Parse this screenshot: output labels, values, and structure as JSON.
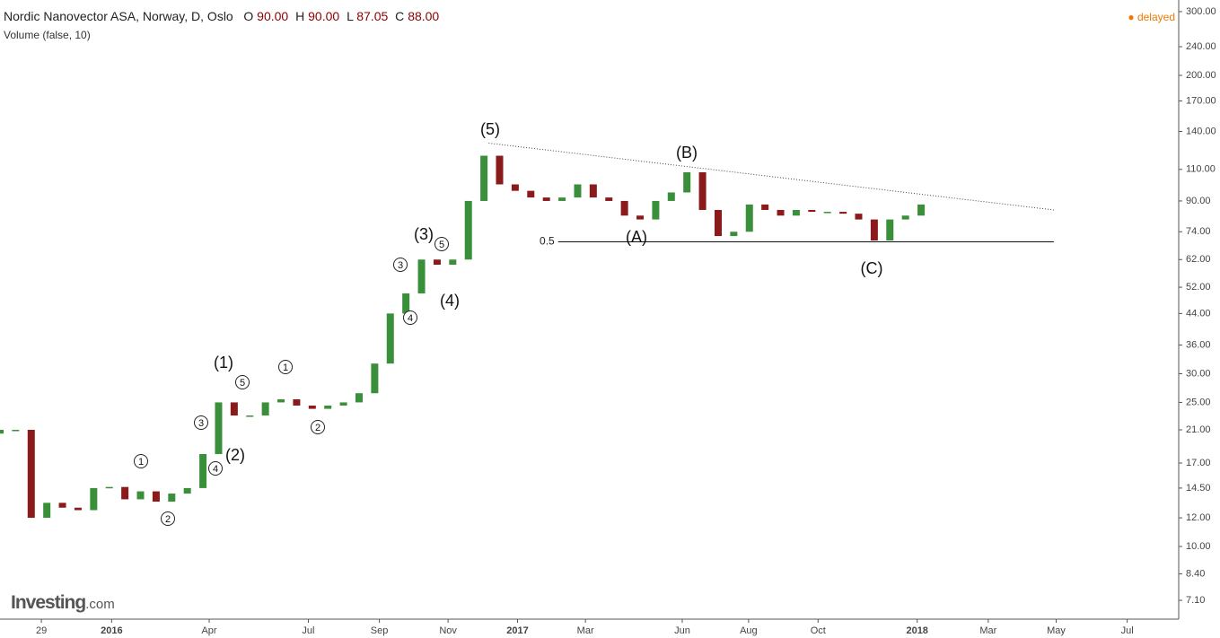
{
  "header": {
    "symbol": "Nordic Nanovector ASA, Norway, D, Oslo",
    "open_label": "O",
    "open": "90.00",
    "high_label": "H",
    "high": "90.00",
    "low_label": "L",
    "low": "87.05",
    "close_label": "C",
    "close": "88.00",
    "indicator": "Volume (false, 10)",
    "status": "delayed",
    "logo": "Investing",
    "logo_suffix": ".com"
  },
  "chart_data": {
    "type": "candlestick",
    "log_scale": true,
    "up_color": "#3a8f3a",
    "down_color": "#8b1a1a",
    "x": [
      0,
      2,
      4,
      6,
      8,
      10,
      12,
      14,
      16,
      18,
      20,
      22,
      24,
      26,
      28,
      30,
      32,
      34,
      36,
      38,
      40,
      42,
      44,
      46,
      48,
      50,
      52,
      54,
      56,
      58,
      60,
      62,
      64,
      66,
      68,
      70,
      72,
      74,
      76,
      78,
      80,
      82,
      84,
      86,
      88,
      90,
      92,
      94,
      96,
      98,
      100,
      102,
      104,
      106,
      108,
      110,
      112,
      114,
      116,
      118
    ],
    "open": [
      20.5,
      21,
      21,
      12,
      13.2,
      12.8,
      12.6,
      14.5,
      14.6,
      13.5,
      14.2,
      13.3,
      14.0,
      14.5,
      18,
      25,
      23,
      23,
      25,
      25.5,
      24.5,
      24,
      24.5,
      25,
      26.5,
      32,
      44,
      50,
      62,
      60,
      62,
      90,
      120,
      100,
      96,
      92,
      90,
      92,
      100,
      92,
      90,
      82,
      80,
      90,
      95,
      108,
      85,
      72,
      74,
      88,
      85,
      82,
      85,
      84,
      84,
      83,
      80,
      70,
      80,
      82
    ],
    "close": [
      21,
      21,
      12,
      13.2,
      12.8,
      12.6,
      14.5,
      14.6,
      13.5,
      14.2,
      13.3,
      14.0,
      14.5,
      18,
      25,
      23,
      23,
      25,
      25.5,
      24.5,
      24,
      24.5,
      25,
      26.5,
      32,
      44,
      50,
      62,
      60,
      62,
      90,
      120,
      100,
      96,
      92,
      90,
      92,
      100,
      92,
      90,
      82,
      80,
      90,
      95,
      108,
      85,
      72,
      74,
      88,
      85,
      82,
      85,
      84,
      84,
      83,
      80,
      70,
      80,
      82,
      88
    ],
    "xlim": [
      0,
      151
    ],
    "xticks": [
      {
        "value": 5.3,
        "label": "29"
      },
      {
        "value": 14.3,
        "label": "2016"
      },
      {
        "value": 26.8,
        "label": "Apr"
      },
      {
        "value": 39.5,
        "label": "Jul"
      },
      {
        "value": 48.6,
        "label": "Sep"
      },
      {
        "value": 57.4,
        "label": "Nov"
      },
      {
        "value": 66.3,
        "label": "2017"
      },
      {
        "value": 75,
        "label": "Mar"
      },
      {
        "value": 87.4,
        "label": "Jun"
      },
      {
        "value": 95.9,
        "label": "Aug"
      },
      {
        "value": 104.8,
        "label": "Oct"
      },
      {
        "value": 117.5,
        "label": "2018"
      },
      {
        "value": 126.6,
        "label": "Mar"
      },
      {
        "value": 135.3,
        "label": "May"
      },
      {
        "value": 144.4,
        "label": "Jul"
      }
    ],
    "ylim": [
      6.3,
      323
    ],
    "yticks": [
      {
        "value": 7.1,
        "label": "7.10"
      },
      {
        "value": 8.4,
        "label": "8.40"
      },
      {
        "value": 10,
        "label": "10.00"
      },
      {
        "value": 12,
        "label": "12.00"
      },
      {
        "value": 14.5,
        "label": "14.50"
      },
      {
        "value": 17,
        "label": "17.00"
      },
      {
        "value": 21,
        "label": "21.00"
      },
      {
        "value": 25,
        "label": "25.00"
      },
      {
        "value": 30,
        "label": "30.00"
      },
      {
        "value": 36,
        "label": "36.00"
      },
      {
        "value": 44,
        "label": "44.00"
      },
      {
        "value": 52,
        "label": "52.00"
      },
      {
        "value": 62,
        "label": "62.00"
      },
      {
        "value": 74,
        "label": "74.00"
      },
      {
        "value": 90,
        "label": "90.00"
      },
      {
        "value": 110,
        "label": "110.00"
      },
      {
        "value": 140,
        "label": "140.00"
      },
      {
        "value": 170,
        "label": "170.00"
      },
      {
        "value": 200,
        "label": "200.00"
      },
      {
        "value": 240,
        "label": "240.00"
      },
      {
        "value": 300,
        "label": "300.00"
      }
    ],
    "trendline": {
      "x": [
        62.6,
        135
      ],
      "y": [
        130,
        85
      ]
    },
    "fib_line": {
      "ratio": 0.5,
      "price": 69.4,
      "x": [
        71.5,
        135
      ]
    },
    "annotations": [
      "(5)",
      "(B)",
      "(A)",
      "(C)",
      "(3)",
      "(4)",
      "(1)",
      "(2)",
      "1",
      "2",
      "3",
      "4",
      "5",
      "1",
      "2",
      "3",
      "4",
      "5"
    ]
  }
}
